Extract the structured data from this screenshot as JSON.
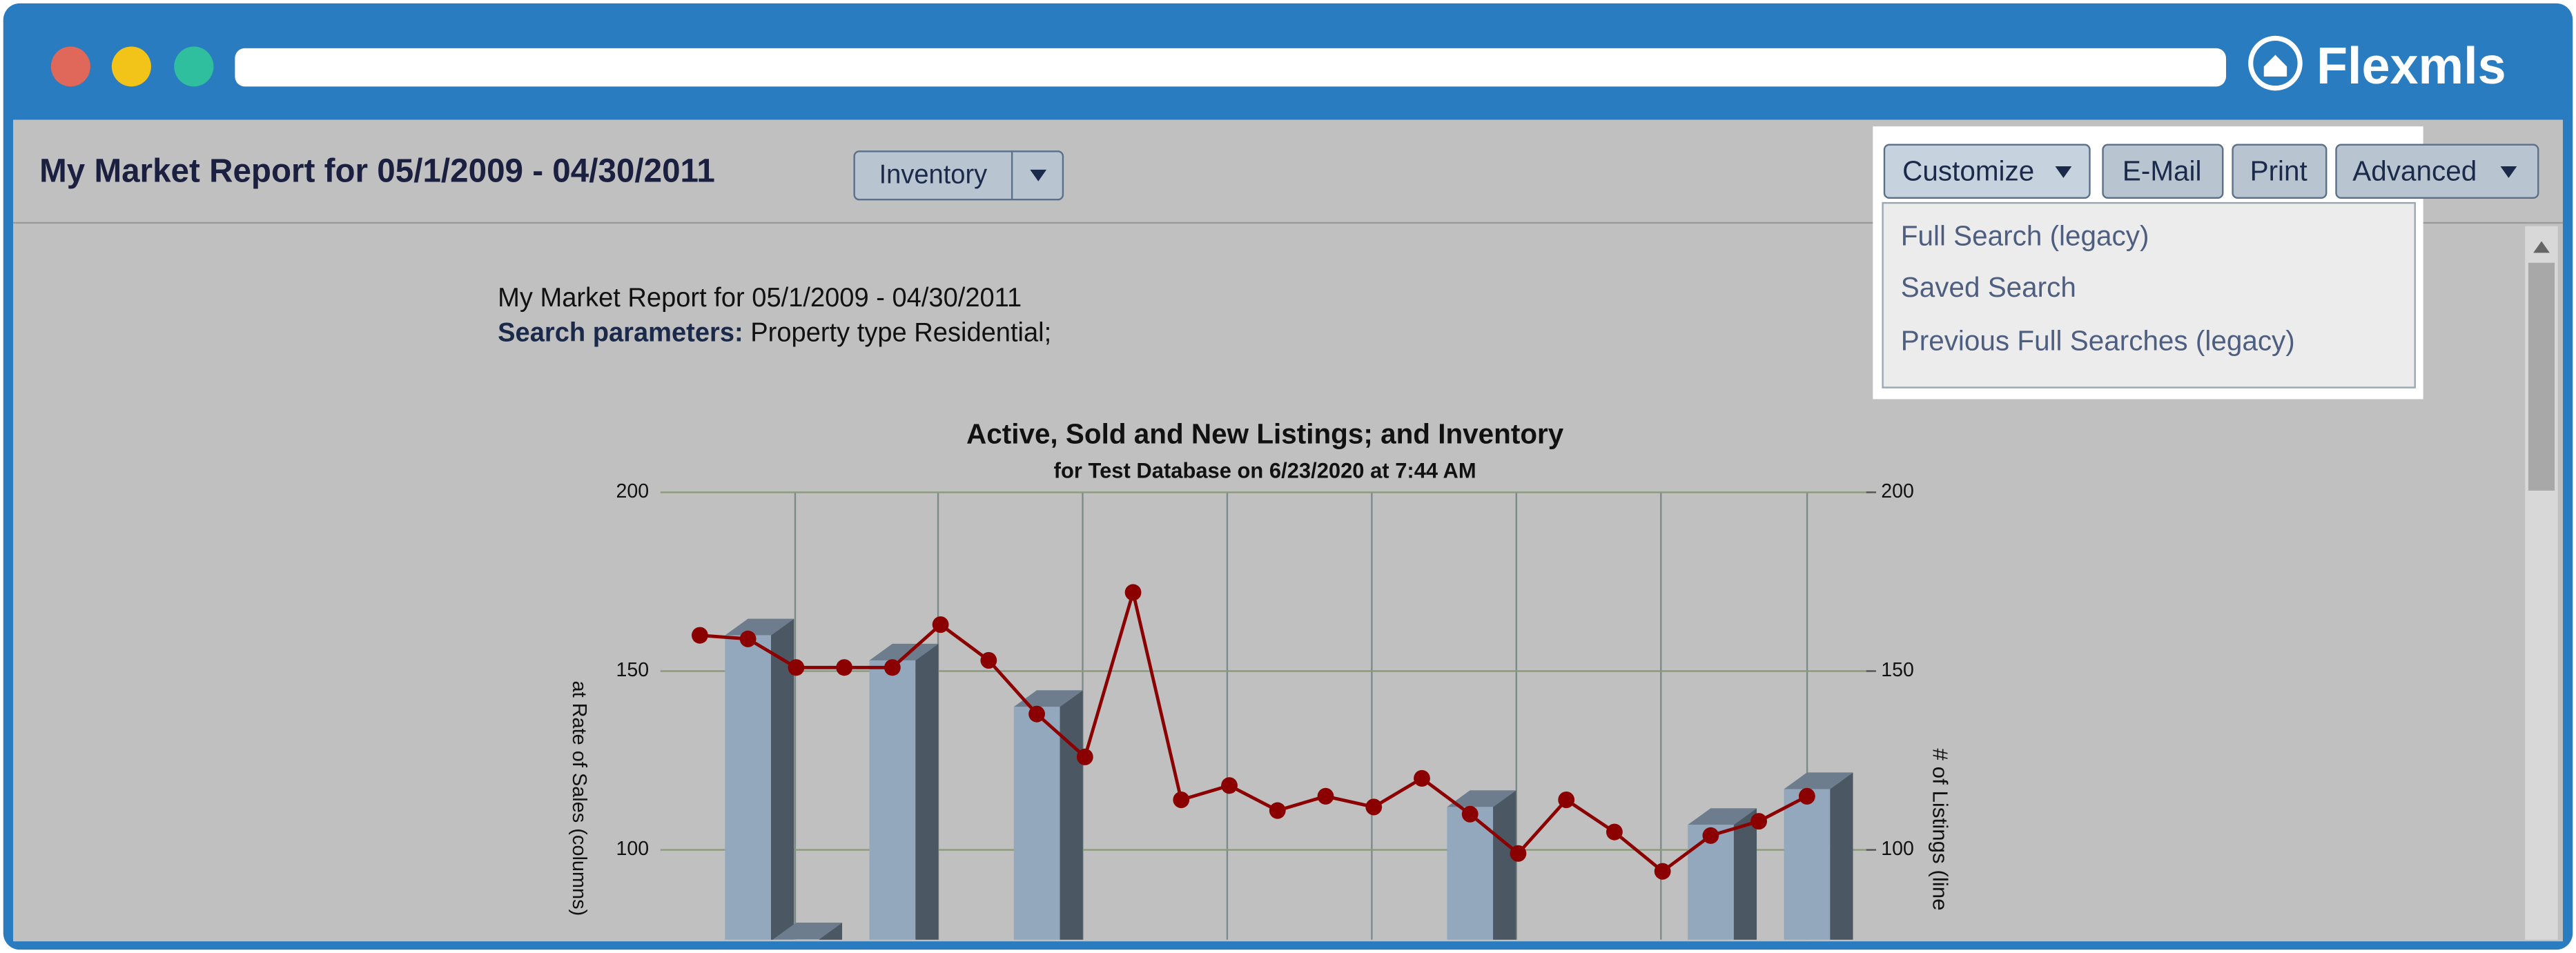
{
  "browser": {
    "brand": "Flexmls"
  },
  "header": {
    "title": "My Market Report for 05/1/2009 - 04/30/2011",
    "view_select": "Inventory",
    "buttons": [
      "Customize",
      "E-Mail",
      "Print",
      "Advanced"
    ]
  },
  "customize_menu": [
    "Full Search (legacy)",
    "Saved Search",
    "Previous Full Searches (legacy)"
  ],
  "report": {
    "title": "My Market Report for 05/1/2009 - 04/30/2011",
    "params_label": "Search parameters:",
    "params_value": "Property type Residential;"
  },
  "chart_data": {
    "type": "combo",
    "title": "Active, Sold and New Listings; and Inventory",
    "subtitle": "for Test Database on 6/23/2020 at 7:44 AM",
    "y_label": "at Rate of Sales (columns)",
    "y2_label": "# of Listings (line",
    "yticks": [
      100,
      150,
      200
    ],
    "y2ticks": [
      100,
      150,
      200
    ],
    "grid": true,
    "series": [
      {
        "kind": "bar",
        "color": "#94a8bd",
        "values": [
          null,
          160,
          75,
          null,
          153,
          null,
          null,
          140,
          null,
          null,
          null,
          null,
          null,
          null,
          null,
          null,
          112,
          null,
          null,
          null,
          null,
          107,
          null,
          117
        ]
      },
      {
        "kind": "line",
        "color": "#8b0000",
        "axis": "y2",
        "values": [
          160,
          159,
          151,
          151,
          151,
          163,
          153,
          138,
          126,
          172,
          114,
          118,
          111,
          115,
          112,
          120,
          110,
          99,
          114,
          105,
          94,
          104,
          108,
          115
        ]
      }
    ]
  }
}
